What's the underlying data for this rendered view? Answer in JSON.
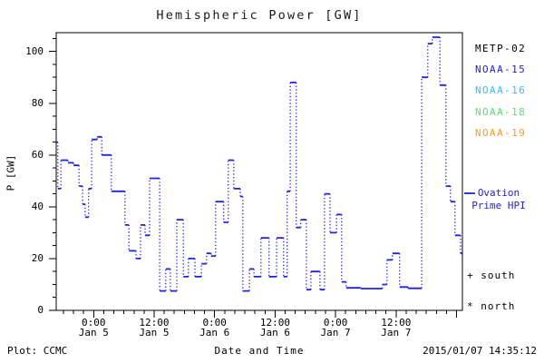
{
  "title": "Hemispheric Power [GW]",
  "colors": {
    "line_blue": "#2222dd",
    "black": "#000000",
    "cyan": "#33bbff",
    "green": "#55dd77",
    "orange": "#ff9922"
  },
  "legend": {
    "satellites": [
      {
        "label": "METP-02",
        "color": "#000000"
      },
      {
        "label": "NOAA-15",
        "color": "#2222dd"
      },
      {
        "label": "NOAA-16",
        "color": "#33bbff"
      },
      {
        "label": "NOAA-18",
        "color": "#55dd77"
      },
      {
        "label": "NOAA-19",
        "color": "#ff9922"
      }
    ],
    "ovation_line1": "Ovation",
    "ovation_line2": "Prime HPI",
    "south_label": "+ south",
    "north_label": "* north"
  },
  "footer": {
    "left": "Plot: CCMC",
    "center": "Date and Time",
    "right": "2015/01/07 14:35:12"
  },
  "chart_data": {
    "type": "line",
    "style": "step-post, dotted verticals",
    "series_name": "Ovation Prime HPI",
    "title": "Hemispheric Power [GW]",
    "ylabel": "P [GW]",
    "xlabel": "Date and Time",
    "ylim": [
      0,
      107.5
    ],
    "y_ticks": [
      0,
      20,
      40,
      60,
      80,
      100
    ],
    "y_minor_step": 5,
    "x_unit": "hours since 2015-01-05 00:00 UT",
    "x_range": [
      -7.4,
      73.2
    ],
    "x_minor_step_hours": 2,
    "x_major_step_hours": 12,
    "grid": false,
    "legend_position": "right-outside",
    "line_color": "#2222dd",
    "x_tick_labels": [
      {
        "t": 0,
        "time": "0:00",
        "date": "Jan 5"
      },
      {
        "t": 12,
        "time": "12:00",
        "date": "Jan 5"
      },
      {
        "t": 24,
        "time": "0:00",
        "date": "Jan 6"
      },
      {
        "t": 36,
        "time": "12:00",
        "date": "Jan 6"
      },
      {
        "t": 48,
        "time": "0:00",
        "date": "Jan 7"
      },
      {
        "t": 60,
        "time": "12:00",
        "date": "Jan 7"
      }
    ],
    "steps": [
      [
        -7.4,
        65
      ],
      [
        -7.1,
        47
      ],
      [
        -6.5,
        58
      ],
      [
        -5.1,
        57
      ],
      [
        -4.0,
        56
      ],
      [
        -2.9,
        48
      ],
      [
        -2.2,
        41
      ],
      [
        -1.7,
        36
      ],
      [
        -1.0,
        47
      ],
      [
        -0.4,
        66
      ],
      [
        0.7,
        67
      ],
      [
        1.6,
        60
      ],
      [
        3.5,
        46
      ],
      [
        6.2,
        33
      ],
      [
        7.0,
        23
      ],
      [
        8.4,
        20
      ],
      [
        9.3,
        33
      ],
      [
        10.2,
        29
      ],
      [
        11.1,
        51
      ],
      [
        13.1,
        7.5
      ],
      [
        14.3,
        16
      ],
      [
        15.2,
        7.5
      ],
      [
        16.5,
        35
      ],
      [
        17.8,
        13
      ],
      [
        18.8,
        20
      ],
      [
        20.1,
        13
      ],
      [
        21.4,
        18
      ],
      [
        22.4,
        22
      ],
      [
        23.3,
        21
      ],
      [
        24.2,
        42
      ],
      [
        25.8,
        34
      ],
      [
        26.7,
        58
      ],
      [
        27.8,
        47
      ],
      [
        29.1,
        44
      ],
      [
        29.6,
        7.5
      ],
      [
        30.9,
        16
      ],
      [
        31.8,
        13
      ],
      [
        33.2,
        28
      ],
      [
        34.8,
        13
      ],
      [
        36.3,
        28
      ],
      [
        37.7,
        13
      ],
      [
        38.4,
        46
      ],
      [
        39.0,
        88
      ],
      [
        40.2,
        32
      ],
      [
        41.1,
        35
      ],
      [
        42.2,
        8
      ],
      [
        43.1,
        15
      ],
      [
        44.9,
        8
      ],
      [
        45.8,
        45
      ],
      [
        46.9,
        30
      ],
      [
        48.2,
        37
      ],
      [
        49.2,
        11
      ],
      [
        50.1,
        8.7
      ],
      [
        53.0,
        8.4
      ],
      [
        57.3,
        10
      ],
      [
        58.2,
        19.5
      ],
      [
        59.3,
        22
      ],
      [
        60.7,
        9
      ],
      [
        62.4,
        8.5
      ],
      [
        65.1,
        90
      ],
      [
        66.3,
        103
      ],
      [
        67.2,
        105.5
      ],
      [
        68.7,
        87
      ],
      [
        69.9,
        48
      ],
      [
        70.8,
        42
      ],
      [
        71.7,
        29
      ],
      [
        72.8,
        22
      ]
    ]
  }
}
